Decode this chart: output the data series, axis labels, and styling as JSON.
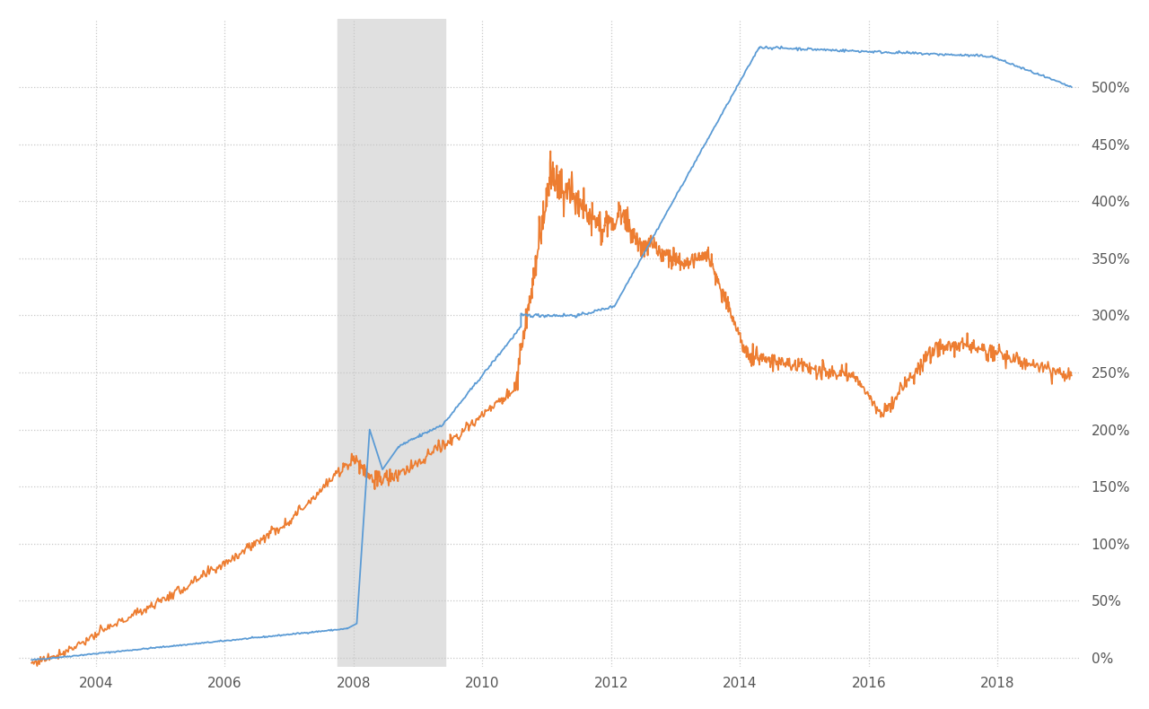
{
  "background_color": "#ffffff",
  "plot_bg_color": "#ffffff",
  "grid_color": "#c8c8c8",
  "recession_start": 2007.75,
  "recession_end": 2009.42,
  "recession_color": "#e0e0e0",
  "blue_color": "#5b9bd5",
  "orange_color": "#ed7d31",
  "ylim": [
    -0.08,
    5.6
  ],
  "yticks": [
    0.0,
    0.5,
    1.0,
    1.5,
    2.0,
    2.5,
    3.0,
    3.5,
    4.0,
    4.5,
    5.0
  ],
  "ytick_labels": [
    "0%",
    "50%",
    "100%",
    "150%",
    "200%",
    "250%",
    "300%",
    "350%",
    "400%",
    "450%",
    "500%"
  ],
  "xlim": [
    2002.8,
    2019.3
  ],
  "xticks": [
    2004,
    2006,
    2008,
    2010,
    2012,
    2014,
    2016,
    2018
  ],
  "line_width": 1.3,
  "figsize": [
    12.8,
    7.9
  ],
  "dpi": 100
}
